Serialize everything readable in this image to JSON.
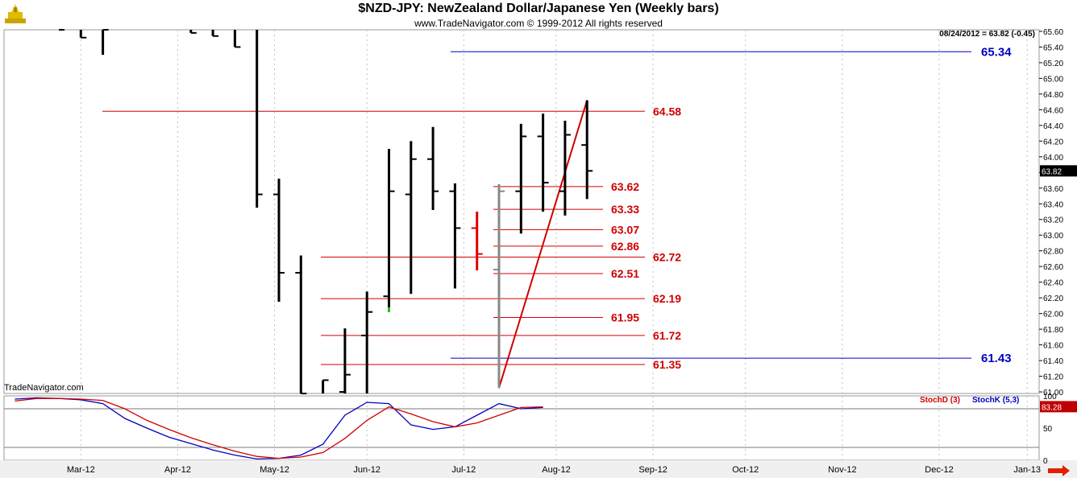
{
  "header": {
    "title": "$NZD-JPY:  NewZealand Dollar/Japanese Yen  (Weekly bars)",
    "copyright": "www.TradeNavigator.com © 1999-2012 All rights reserved"
  },
  "footer": {
    "brand": "TradeNavigator.com"
  },
  "readout": {
    "last": "08/24/2012 = 63.82 (-0.45)",
    "price_box": "63.82",
    "stoch_box": "83.28"
  },
  "chart_data": [
    {
      "type": "ohlc",
      "title": "$NZD-JPY:  NewZealand Dollar/Japanese Yen  (Weekly bars)",
      "bar_interval": "weekly",
      "x_tick_labels": [
        "Mar-12",
        "Apr-12",
        "May-12",
        "Jun-12",
        "Jul-12",
        "Aug-12",
        "Sep-12",
        "Oct-12",
        "Nov-12",
        "Dec-12",
        "Jan-13"
      ],
      "y_tick_labels": [
        "61.00",
        "61.20",
        "61.40",
        "61.60",
        "61.80",
        "62.00",
        "62.20",
        "62.40",
        "62.60",
        "62.80",
        "63.00",
        "63.20",
        "63.40",
        "63.60",
        "63.80",
        "64.00",
        "64.20",
        "64.40",
        "64.60",
        "64.80",
        "65.00",
        "65.20",
        "65.40",
        "65.60"
      ],
      "ylim": [
        60.98,
        65.62
      ],
      "xlim": [
        0,
        46
      ],
      "month_ticks": [
        1,
        5.4,
        9.8,
        14,
        18.4,
        22.6,
        27,
        31.2,
        35.6,
        40,
        44
      ],
      "bars": [
        {
          "x": 0,
          "o": null,
          "h": 65.62,
          "l": 65.62,
          "c": 65.62
        },
        {
          "x": 1,
          "o": null,
          "h": 65.62,
          "l": 65.52,
          "c": 65.52
        },
        {
          "x": 2,
          "o": null,
          "h": 65.62,
          "l": 65.3,
          "c": 65.62
        },
        {
          "x": 6,
          "o": null,
          "h": 65.62,
          "l": 65.58,
          "c": 65.58
        },
        {
          "x": 7,
          "o": null,
          "h": 65.62,
          "l": 65.54,
          "c": 65.54
        },
        {
          "x": 8,
          "o": null,
          "h": 65.62,
          "l": 65.4,
          "c": 65.4
        },
        {
          "x": 9,
          "o": null,
          "h": 65.62,
          "l": 63.35,
          "c": 63.52
        },
        {
          "x": 10,
          "o": 63.52,
          "h": 63.72,
          "l": 62.15,
          "c": 62.52
        },
        {
          "x": 11,
          "o": 62.52,
          "h": 62.74,
          "l": 60.98,
          "c": 60.98
        },
        {
          "x": 12,
          "o": null,
          "h": 61.15,
          "l": 60.98,
          "c": 61.15
        },
        {
          "x": 13,
          "o": 61.0,
          "h": 61.81,
          "l": 60.98,
          "c": 61.22
        },
        {
          "x": 14,
          "o": 61.72,
          "h": 62.28,
          "l": 60.98,
          "c": 62.02
        },
        {
          "x": 15,
          "o": 62.22,
          "h": 64.1,
          "l": 62.02,
          "c": 63.56
        },
        {
          "x": 16,
          "o": 63.52,
          "h": 64.2,
          "l": 62.25,
          "c": 63.97
        },
        {
          "x": 17,
          "o": 63.97,
          "h": 64.38,
          "l": 63.32,
          "c": 63.56
        },
        {
          "x": 18,
          "o": 63.56,
          "h": 63.66,
          "l": 62.32,
          "c": 63.09
        },
        {
          "x": 19,
          "o": 63.09,
          "h": 63.3,
          "l": 62.55,
          "c": 62.76
        },
        {
          "x": 20,
          "o": 62.56,
          "h": 63.65,
          "l": 61.05,
          "c": 63.56
        },
        {
          "x": 21,
          "o": 63.56,
          "h": 64.42,
          "l": 63.02,
          "c": 64.26
        },
        {
          "x": 22,
          "o": 64.26,
          "h": 64.55,
          "l": 63.3,
          "c": 63.67
        },
        {
          "x": 23,
          "o": 63.56,
          "h": 64.46,
          "l": 63.25,
          "c": 64.28
        },
        {
          "x": 24,
          "o": 64.15,
          "h": 64.72,
          "l": 63.46,
          "c": 63.82
        }
      ],
      "bar_colors": {
        "default": "#000000",
        "up_reversal": "#e00000",
        "gray_bar": "#888888"
      },
      "horizontal_levels": [
        {
          "value": 64.58,
          "label": "64.58",
          "color": "#d00000"
        },
        {
          "value": 63.62,
          "label": "63.62",
          "color": "#d00000"
        },
        {
          "value": 63.33,
          "label": "63.33",
          "color": "#d00000"
        },
        {
          "value": 63.07,
          "label": "63.07",
          "color": "#d00000"
        },
        {
          "value": 62.86,
          "label": "62.86",
          "color": "#d00000"
        },
        {
          "value": 62.72,
          "label": "62.72",
          "color": "#d00000"
        },
        {
          "value": 62.51,
          "label": "62.51",
          "color": "#d00000"
        },
        {
          "value": 62.19,
          "label": "62.19",
          "color": "#d00000"
        },
        {
          "value": 61.95,
          "label": "61.95",
          "color": "#d00000"
        },
        {
          "value": 61.72,
          "label": "61.72",
          "color": "#d00000"
        },
        {
          "value": 61.35,
          "label": "61.35",
          "color": "#d00000"
        },
        {
          "value": 65.34,
          "label": "65.34",
          "color": "#0000c0"
        },
        {
          "value": 61.43,
          "label": "61.43",
          "color": "#0000c0"
        }
      ],
      "trendline": {
        "from": {
          "x": 20,
          "y": 61.05
        },
        "to": {
          "x": 24,
          "y": 64.72
        },
        "color": "#d00000"
      },
      "last_price": 63.82
    },
    {
      "type": "line",
      "title": "",
      "legend": [
        "StochD (3)",
        "StochK (5,3)"
      ],
      "y_tick_labels": [
        "100",
        "50",
        "0"
      ],
      "ylim": [
        0,
        100
      ],
      "reference_levels": [
        80,
        20
      ],
      "series": [
        {
          "name": "StochK (5,3)",
          "color": "#0000c0",
          "x": [
            0,
            1,
            2,
            3,
            4,
            5,
            6,
            7,
            8,
            9,
            10,
            11,
            12,
            13,
            14,
            15,
            16,
            17,
            18,
            19,
            20,
            21,
            22,
            23,
            24
          ],
          "values": [
            95,
            97,
            96,
            94,
            88,
            65,
            50,
            36,
            26,
            16,
            8,
            2,
            3,
            8,
            25,
            70,
            90,
            88,
            55,
            48,
            52,
            70,
            88,
            80,
            82
          ]
        },
        {
          "name": "StochD (3)",
          "color": "#d00000",
          "x": [
            0,
            1,
            2,
            3,
            4,
            5,
            6,
            7,
            8,
            9,
            10,
            11,
            12,
            13,
            14,
            15,
            16,
            17,
            18,
            19,
            20,
            21,
            22,
            23,
            24
          ],
          "values": [
            92,
            96,
            96,
            95,
            93,
            80,
            62,
            48,
            35,
            24,
            14,
            6,
            3,
            5,
            12,
            34,
            62,
            83,
            72,
            60,
            52,
            58,
            70,
            82,
            83
          ]
        }
      ],
      "last_value": 83.28
    }
  ]
}
